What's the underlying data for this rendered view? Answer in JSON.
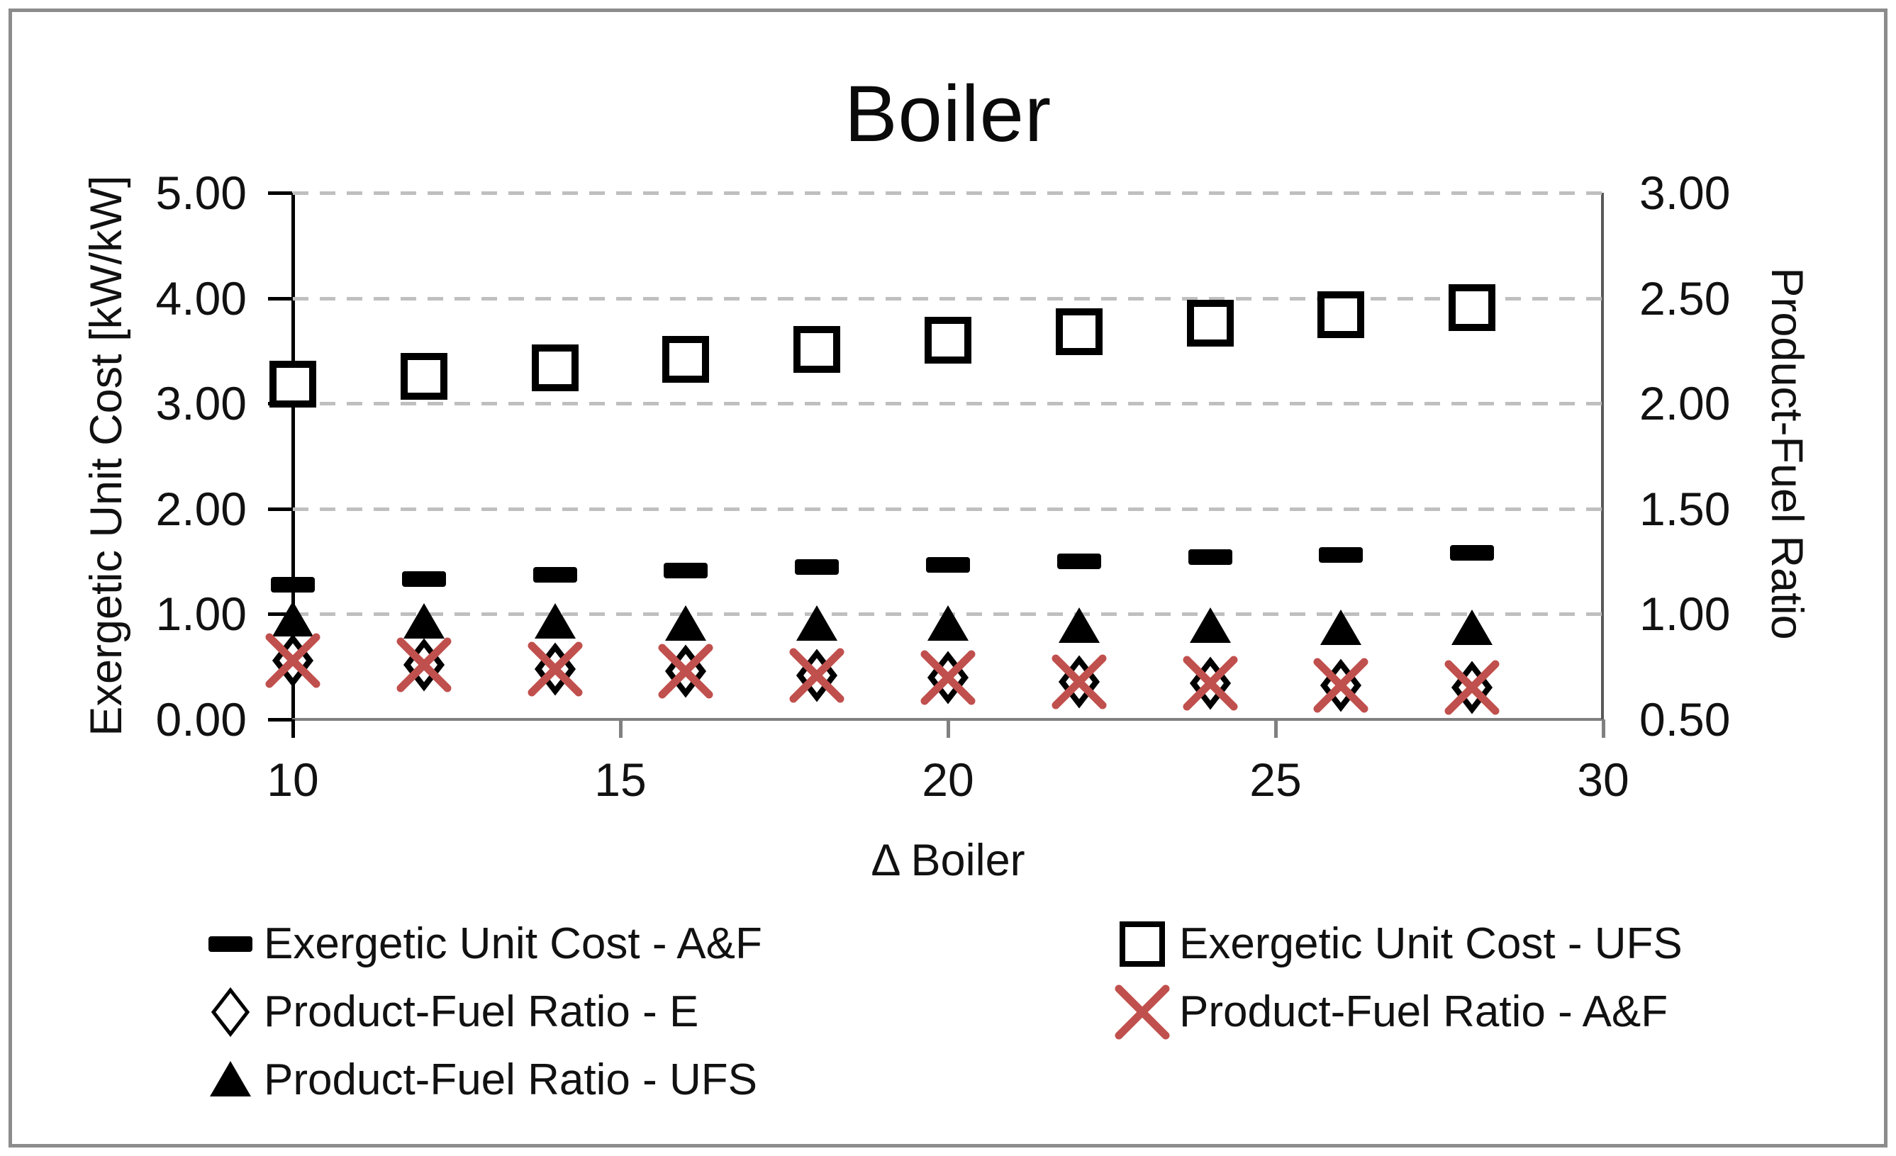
{
  "title": "Boiler",
  "chart_data": {
    "type": "scatter",
    "title": "Boiler",
    "x": [
      10,
      12,
      14,
      16,
      18,
      20,
      22,
      24,
      26,
      28
    ],
    "x_axis": {
      "label": "Δ Boiler",
      "min": 10,
      "max": 30,
      "tick_values": [
        10,
        15,
        20,
        25,
        30
      ],
      "tick_labels": [
        "10",
        "15",
        "20",
        "25",
        "30"
      ]
    },
    "y_left": {
      "label": "Exergetic Unit Cost [kW/kW]",
      "min": 0,
      "max": 5,
      "tick_values": [
        5,
        4,
        3,
        2,
        1,
        0
      ],
      "tick_labels": [
        "5.00",
        "4.00",
        "3.00",
        "2.00",
        "1.00",
        "0.00"
      ],
      "grid_values": [
        1,
        2,
        3,
        4,
        5
      ]
    },
    "y_right": {
      "label": "Product-Fuel Ratio",
      "min": 0.5,
      "max": 3,
      "tick_values": [
        3.0,
        2.5,
        2.0,
        1.5,
        1.0,
        0.5
      ],
      "tick_labels": [
        "3.00",
        "2.50",
        "2.00",
        "1.50",
        "1.00",
        "0.50"
      ]
    },
    "series": [
      {
        "name": "Exergetic Unit Cost  - A&F",
        "axis": "left",
        "marker": "dash",
        "color": "#000000",
        "values": [
          1.28,
          1.33,
          1.37,
          1.41,
          1.45,
          1.47,
          1.5,
          1.54,
          1.56,
          1.58
        ]
      },
      {
        "name": "Exergetic Unit Cost  - UFS",
        "axis": "left",
        "marker": "square-open",
        "color": "#000000",
        "values": [
          3.18,
          3.26,
          3.34,
          3.42,
          3.51,
          3.6,
          3.68,
          3.76,
          3.84,
          3.91
        ]
      },
      {
        "name": "Product-Fuel Ratio -  E",
        "axis": "right",
        "marker": "diamond-open",
        "color": "#000000",
        "values": [
          0.78,
          0.76,
          0.74,
          0.73,
          0.71,
          0.7,
          0.68,
          0.67,
          0.66,
          0.65
        ]
      },
      {
        "name": "Product-Fuel Ratio -  A&F",
        "axis": "right",
        "marker": "x-cross",
        "color": "#C0504D",
        "values": [
          0.78,
          0.76,
          0.74,
          0.73,
          0.71,
          0.7,
          0.68,
          0.67,
          0.66,
          0.65
        ]
      },
      {
        "name": "Product-Fuel Ratio - UFS",
        "axis": "right",
        "marker": "triangle-filled",
        "color": "#000000",
        "values": [
          0.97,
          0.96,
          0.96,
          0.95,
          0.95,
          0.95,
          0.94,
          0.94,
          0.93,
          0.93
        ]
      }
    ],
    "grid": {
      "horizontal": "dashed",
      "color": "#BFBFBF"
    },
    "legend_position": "bottom"
  },
  "legend": {
    "items": [
      {
        "series_index": 0,
        "row": 0,
        "col": 0
      },
      {
        "series_index": 1,
        "row": 0,
        "col": 1
      },
      {
        "series_index": 2,
        "row": 1,
        "col": 0
      },
      {
        "series_index": 3,
        "row": 1,
        "col": 1
      },
      {
        "series_index": 4,
        "row": 2,
        "col": 0
      }
    ]
  },
  "colors": {
    "marker_red": "#C0504D",
    "grid_gray": "#BFBFBF",
    "axis_gray": "#808080",
    "frame_gray": "#8C8C8C",
    "text_black": "#111111",
    "background": "#FFFFFF"
  }
}
